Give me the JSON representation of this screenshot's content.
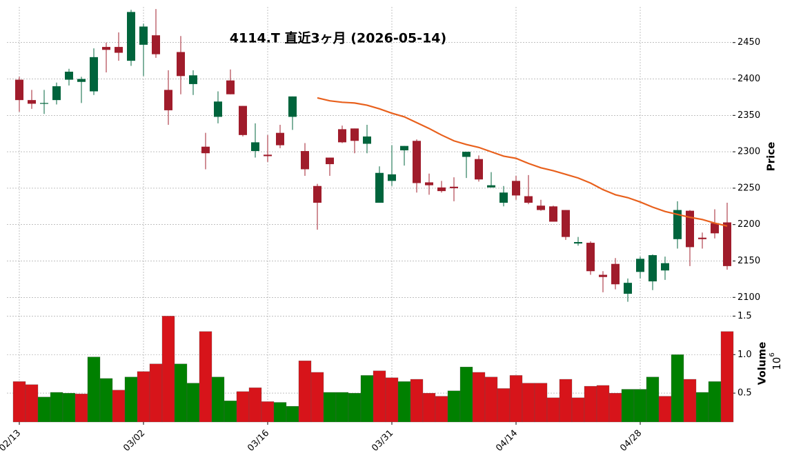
{
  "chart_data": {
    "type": "candlestick",
    "title": "4114.T  直近3ヶ月  (2026-05-14)",
    "categories": [
      "02/13",
      null,
      null,
      null,
      null,
      null,
      null,
      null,
      null,
      null,
      "03/02",
      null,
      null,
      null,
      null,
      null,
      null,
      null,
      null,
      null,
      "03/16",
      null,
      null,
      null,
      null,
      null,
      null,
      null,
      null,
      null,
      "03/31",
      null,
      null,
      null,
      null,
      null,
      null,
      null,
      null,
      null,
      "04/14",
      null,
      null,
      null,
      null,
      null,
      null,
      null,
      null,
      null,
      "04/28",
      null,
      null,
      null,
      null,
      null,
      null,
      null
    ],
    "open": [
      2399,
      2371,
      2366,
      2371,
      2399,
      2396,
      2383,
      2444,
      2444,
      2425,
      2447,
      2460,
      2385,
      2437,
      2393,
      2307,
      2348,
      2398,
      2363,
      2301,
      2296,
      2326,
      2348,
      2301,
      2253,
      2292,
      2331,
      2332,
      2311,
      2230,
      2260,
      2302,
      2315,
      2258,
      2251,
      2252,
      2293,
      2290,
      2251,
      2230,
      2260,
      2239,
      2226,
      2225,
      2220,
      2174,
      2175,
      2131,
      2146,
      2105,
      2135,
      2122,
      2137,
      2180,
      2219,
      2182,
      2202,
      2203
    ],
    "high": [
      2403,
      2385,
      2385,
      2395,
      2414,
      2403,
      2442,
      2450,
      2464,
      2495,
      2476,
      2496,
      2412,
      2459,
      2412,
      2326,
      2383,
      2413,
      2363,
      2339,
      2323,
      2337,
      2376,
      2312,
      2256,
      2292,
      2336,
      2332,
      2337,
      2280,
      2309,
      2308,
      2317,
      2270,
      2260,
      2265,
      2300,
      2295,
      2272,
      2253,
      2267,
      2268,
      2234,
      2226,
      2220,
      2183,
      2177,
      2136,
      2154,
      2126,
      2156,
      2159,
      2156,
      2232,
      2220,
      2189,
      2221,
      2230
    ],
    "low": [
      2355,
      2359,
      2352,
      2365,
      2391,
      2367,
      2378,
      2409,
      2425,
      2418,
      2404,
      2429,
      2337,
      2379,
      2378,
      2276,
      2339,
      2379,
      2321,
      2292,
      2286,
      2305,
      2330,
      2267,
      2193,
      2267,
      2312,
      2298,
      2298,
      2230,
      2253,
      2281,
      2244,
      2241,
      2244,
      2232,
      2264,
      2259,
      2251,
      2225,
      2234,
      2228,
      2219,
      2204,
      2179,
      2171,
      2131,
      2107,
      2111,
      2094,
      2126,
      2110,
      2124,
      2167,
      2143,
      2167,
      2181,
      2138
    ],
    "close": [
      2371,
      2366,
      2367,
      2390,
      2410,
      2400,
      2430,
      2440,
      2436,
      2492,
      2472,
      2434,
      2357,
      2404,
      2405,
      2298,
      2369,
      2379,
      2323,
      2313,
      2294,
      2309,
      2376,
      2276,
      2230,
      2283,
      2313,
      2315,
      2321,
      2271,
      2269,
      2308,
      2257,
      2254,
      2246,
      2250,
      2300,
      2262,
      2254,
      2244,
      2240,
      2230,
      2220,
      2204,
      2183,
      2176,
      2136,
      2128,
      2118,
      2120,
      2153,
      2158,
      2147,
      2220,
      2169,
      2180,
      2188,
      2143
    ],
    "up_color": "#00643c",
    "down_color": "#a01c2b",
    "ylim": [
      2087,
      2499
    ],
    "yticks": [
      2100,
      2150,
      2200,
      2250,
      2300,
      2350,
      2400,
      2450
    ],
    "ylabel": "Price",
    "moving_average": {
      "color": "#e8601c",
      "values": [
        null,
        null,
        null,
        null,
        null,
        null,
        null,
        null,
        null,
        null,
        null,
        null,
        null,
        null,
        null,
        null,
        null,
        null,
        null,
        null,
        null,
        null,
        null,
        null,
        2374,
        2370,
        2368,
        2367,
        2364,
        2359,
        2353,
        2348,
        2340,
        2332,
        2323,
        2315,
        2310,
        2306,
        2300,
        2294,
        2291,
        2284,
        2278,
        2274,
        2269,
        2264,
        2257,
        2248,
        2241,
        2237,
        2231,
        2224,
        2218,
        2214,
        2210,
        2207,
        2202,
        2198
      ]
    },
    "volume": {
      "values": [
        0.65,
        0.61,
        0.45,
        0.51,
        0.5,
        0.49,
        0.97,
        0.69,
        0.54,
        0.71,
        0.78,
        0.88,
        1.5,
        0.88,
        0.63,
        1.3,
        0.71,
        0.4,
        0.52,
        0.57,
        0.39,
        0.38,
        0.33,
        0.92,
        0.77,
        0.51,
        0.51,
        0.5,
        0.73,
        0.79,
        0.7,
        0.65,
        0.68,
        0.5,
        0.46,
        0.53,
        0.84,
        0.77,
        0.71,
        0.56,
        0.73,
        0.63,
        0.63,
        0.44,
        0.68,
        0.44,
        0.59,
        0.6,
        0.5,
        0.55,
        0.55,
        0.71,
        0.46,
        1.0,
        0.68,
        0.51,
        0.65,
        1.3
      ],
      "up_color": "#008000",
      "down_color": "#d7141a",
      "ylim": [
        0.125,
        1.62
      ],
      "yticks": [
        0.5,
        {
          "value": 1,
          "label": "1.0"
        },
        1.5
      ],
      "ylabel": "Volume",
      "multiplier_base": "10",
      "multiplier_exponent": "6"
    }
  }
}
